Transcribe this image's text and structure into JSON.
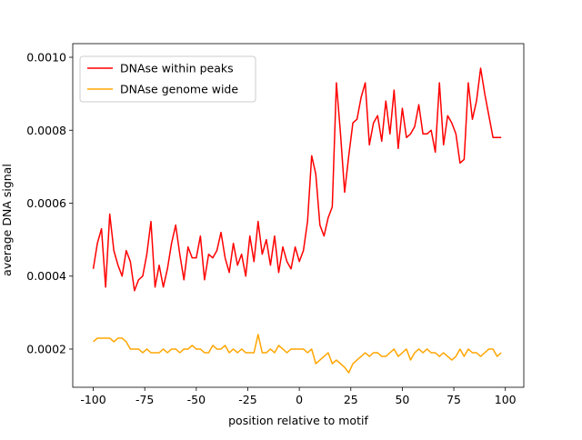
{
  "chart_data": {
    "type": "line",
    "xlabel": "position relative to motif",
    "ylabel": "average DNA signal",
    "x": [
      -100,
      -98,
      -96,
      -94,
      -92,
      -90,
      -88,
      -86,
      -84,
      -82,
      -80,
      -78,
      -76,
      -74,
      -72,
      -70,
      -68,
      -66,
      -64,
      -62,
      -60,
      -58,
      -56,
      -54,
      -52,
      -50,
      -48,
      -46,
      -44,
      -42,
      -40,
      -38,
      -36,
      -34,
      -32,
      -30,
      -28,
      -26,
      -24,
      -22,
      -20,
      -18,
      -16,
      -14,
      -12,
      -10,
      -8,
      -6,
      -4,
      -2,
      0,
      2,
      4,
      6,
      8,
      10,
      12,
      14,
      16,
      18,
      20,
      22,
      24,
      26,
      28,
      30,
      32,
      34,
      36,
      38,
      40,
      42,
      44,
      46,
      48,
      50,
      52,
      54,
      56,
      58,
      60,
      62,
      64,
      66,
      68,
      70,
      72,
      74,
      76,
      78,
      80,
      82,
      84,
      86,
      88,
      90,
      92,
      94,
      96,
      98
    ],
    "series": [
      {
        "name": "DNAse within peaks",
        "color": "#ff0000",
        "values": [
          0.00042,
          0.00049,
          0.00053,
          0.00037,
          0.00057,
          0.00047,
          0.00043,
          0.0004,
          0.00047,
          0.00044,
          0.00036,
          0.00039,
          0.0004,
          0.00046,
          0.00055,
          0.00037,
          0.00043,
          0.00037,
          0.00042,
          0.00049,
          0.00054,
          0.00046,
          0.00039,
          0.00048,
          0.00045,
          0.00045,
          0.00051,
          0.00039,
          0.00046,
          0.00045,
          0.00047,
          0.00052,
          0.00045,
          0.00041,
          0.00049,
          0.00043,
          0.00046,
          0.0004,
          0.00051,
          0.00044,
          0.00055,
          0.00046,
          0.0005,
          0.00043,
          0.00051,
          0.00041,
          0.00048,
          0.00044,
          0.00042,
          0.00048,
          0.00044,
          0.00047,
          0.00055,
          0.00073,
          0.00068,
          0.00054,
          0.00051,
          0.00056,
          0.00059,
          0.00093,
          0.00079,
          0.00063,
          0.00073,
          0.00082,
          0.00083,
          0.00089,
          0.00093,
          0.00076,
          0.00082,
          0.00084,
          0.00077,
          0.00088,
          0.00079,
          0.00091,
          0.00075,
          0.00086,
          0.00078,
          0.00079,
          0.00081,
          0.00087,
          0.00079,
          0.00079,
          0.0008,
          0.00074,
          0.00093,
          0.00076,
          0.00084,
          0.00082,
          0.00079,
          0.00071,
          0.00072,
          0.00093,
          0.00083,
          0.00088,
          0.00097,
          0.0009,
          0.00084,
          0.00078,
          0.00078,
          0.00078
        ]
      },
      {
        "name": "DNAse genome wide",
        "color": "#ffa500",
        "values": [
          0.00022,
          0.00023,
          0.00023,
          0.00023,
          0.00023,
          0.00022,
          0.00023,
          0.00023,
          0.00022,
          0.0002,
          0.0002,
          0.0002,
          0.00019,
          0.0002,
          0.00019,
          0.00019,
          0.00019,
          0.0002,
          0.00019,
          0.0002,
          0.0002,
          0.00019,
          0.0002,
          0.0002,
          0.00021,
          0.0002,
          0.0002,
          0.00019,
          0.00019,
          0.00021,
          0.0002,
          0.0002,
          0.00021,
          0.00019,
          0.0002,
          0.00019,
          0.0002,
          0.00019,
          0.00019,
          0.00019,
          0.00024,
          0.00019,
          0.00019,
          0.0002,
          0.00019,
          0.00021,
          0.0002,
          0.00019,
          0.0002,
          0.0002,
          0.0002,
          0.0002,
          0.00019,
          0.0002,
          0.00016,
          0.00017,
          0.00018,
          0.00019,
          0.00016,
          0.00017,
          0.00016,
          0.00015,
          0.000135,
          0.00016,
          0.00017,
          0.00018,
          0.00019,
          0.00018,
          0.00019,
          0.00019,
          0.00018,
          0.00018,
          0.00019,
          0.0002,
          0.00018,
          0.00019,
          0.0002,
          0.00017,
          0.00019,
          0.0002,
          0.00019,
          0.0002,
          0.00019,
          0.00019,
          0.00018,
          0.00019,
          0.00018,
          0.00017,
          0.00018,
          0.0002,
          0.00018,
          0.0002,
          0.00019,
          0.00019,
          0.00018,
          0.00019,
          0.0002,
          0.0002,
          0.00018,
          0.00019
        ]
      }
    ],
    "xlim": [
      -109.95,
      108.95
    ],
    "xticks": [
      -100,
      -75,
      -50,
      -25,
      0,
      25,
      50,
      75,
      100
    ],
    "ylim": [
      9.53e-05,
      0.0010374
    ],
    "yticks": [
      0.0002,
      0.0004,
      0.0006,
      0.0008,
      {
        "value": 0.001,
        "label": "0.0010"
      }
    ],
    "legend": "upper left"
  }
}
